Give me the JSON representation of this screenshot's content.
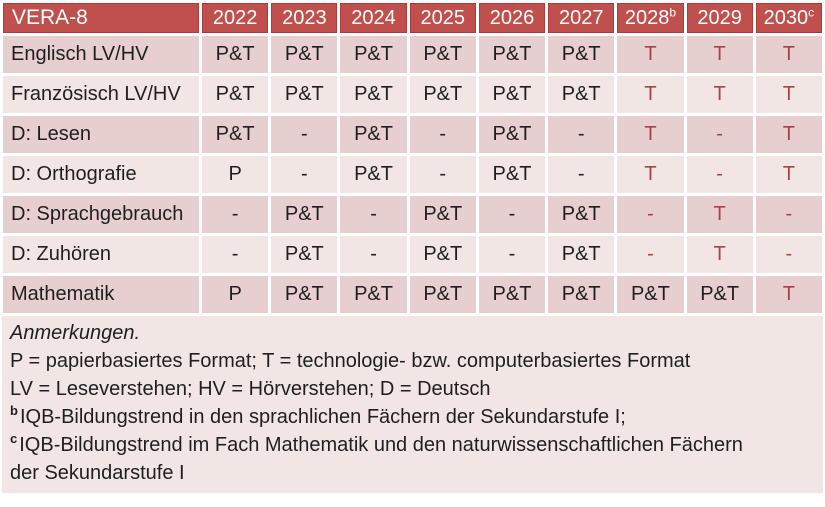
{
  "colors": {
    "header_bg": "#c0504d",
    "header_border": "#a73e3b",
    "header_text": "#ffffff",
    "band_dark": "#e6cfce",
    "band_light": "#f2e6e5",
    "accent_red": "#a24743",
    "text": "#1f1f1f"
  },
  "table": {
    "title": "VERA-8",
    "year_headers": [
      {
        "label": "2022",
        "sup": ""
      },
      {
        "label": "2023",
        "sup": ""
      },
      {
        "label": "2024",
        "sup": ""
      },
      {
        "label": "2025",
        "sup": ""
      },
      {
        "label": "2026",
        "sup": ""
      },
      {
        "label": "2027",
        "sup": ""
      },
      {
        "label": "2028",
        "sup": "b"
      },
      {
        "label": "2029",
        "sup": ""
      },
      {
        "label": "2030",
        "sup": "c"
      }
    ],
    "rows": [
      {
        "label": "Englisch LV/HV",
        "cells": [
          {
            "v": "P&T"
          },
          {
            "v": "P&T"
          },
          {
            "v": "P&T"
          },
          {
            "v": "P&T"
          },
          {
            "v": "P&T"
          },
          {
            "v": "P&T"
          },
          {
            "v": "T",
            "red": true
          },
          {
            "v": "T",
            "red": true
          },
          {
            "v": "T",
            "red": true
          }
        ]
      },
      {
        "label": "Französisch LV/HV",
        "cells": [
          {
            "v": "P&T"
          },
          {
            "v": "P&T"
          },
          {
            "v": "P&T"
          },
          {
            "v": "P&T"
          },
          {
            "v": "P&T"
          },
          {
            "v": "P&T"
          },
          {
            "v": "T",
            "red": true
          },
          {
            "v": "T",
            "red": true
          },
          {
            "v": "T",
            "red": true
          }
        ]
      },
      {
        "label": "D: Lesen",
        "cells": [
          {
            "v": "P&T"
          },
          {
            "v": "-"
          },
          {
            "v": "P&T"
          },
          {
            "v": "-"
          },
          {
            "v": "P&T"
          },
          {
            "v": "-"
          },
          {
            "v": "T",
            "red": true
          },
          {
            "v": "-",
            "red": true
          },
          {
            "v": "T",
            "red": true
          }
        ]
      },
      {
        "label": "D: Orthografie",
        "cells": [
          {
            "v": "P"
          },
          {
            "v": "-"
          },
          {
            "v": "P&T"
          },
          {
            "v": "-"
          },
          {
            "v": "P&T"
          },
          {
            "v": "-"
          },
          {
            "v": "T",
            "red": true
          },
          {
            "v": "-",
            "red": true
          },
          {
            "v": "T",
            "red": true
          }
        ]
      },
      {
        "label": "D: Sprachgebrauch",
        "cells": [
          {
            "v": "-"
          },
          {
            "v": "P&T"
          },
          {
            "v": "-"
          },
          {
            "v": "P&T"
          },
          {
            "v": "-"
          },
          {
            "v": "P&T"
          },
          {
            "v": "-",
            "red": true
          },
          {
            "v": "T",
            "red": true
          },
          {
            "v": "-",
            "red": true
          }
        ]
      },
      {
        "label": "D: Zuhören",
        "cells": [
          {
            "v": "-"
          },
          {
            "v": "P&T"
          },
          {
            "v": "-"
          },
          {
            "v": "P&T"
          },
          {
            "v": "-"
          },
          {
            "v": "P&T"
          },
          {
            "v": "-",
            "red": true
          },
          {
            "v": "T",
            "red": true
          },
          {
            "v": "-",
            "red": true
          }
        ]
      },
      {
        "label": "Mathematik",
        "cells": [
          {
            "v": "P"
          },
          {
            "v": "P&T"
          },
          {
            "v": "P&T"
          },
          {
            "v": "P&T"
          },
          {
            "v": "P&T"
          },
          {
            "v": "P&T"
          },
          {
            "v": "P&T"
          },
          {
            "v": "P&T"
          },
          {
            "v": "T",
            "red": true
          }
        ]
      }
    ]
  },
  "notes": {
    "heading": "Anmerkungen.",
    "lines": [
      {
        "sup": "",
        "text": "P = papierbasiertes Format; T = technologie- bzw. computerbasiertes Format"
      },
      {
        "sup": "",
        "text": "LV = Leseverstehen; HV = Hörverstehen; D = Deutsch"
      },
      {
        "sup": "b",
        "text": "IQB-Bildungstrend in den sprachlichen Fächern der Sekundarstufe I;"
      },
      {
        "sup": "c",
        "text": "IQB-Bildungstrend im Fach Mathematik und den naturwissenschaftlichen Fächern der Sekundarstufe I"
      }
    ]
  }
}
